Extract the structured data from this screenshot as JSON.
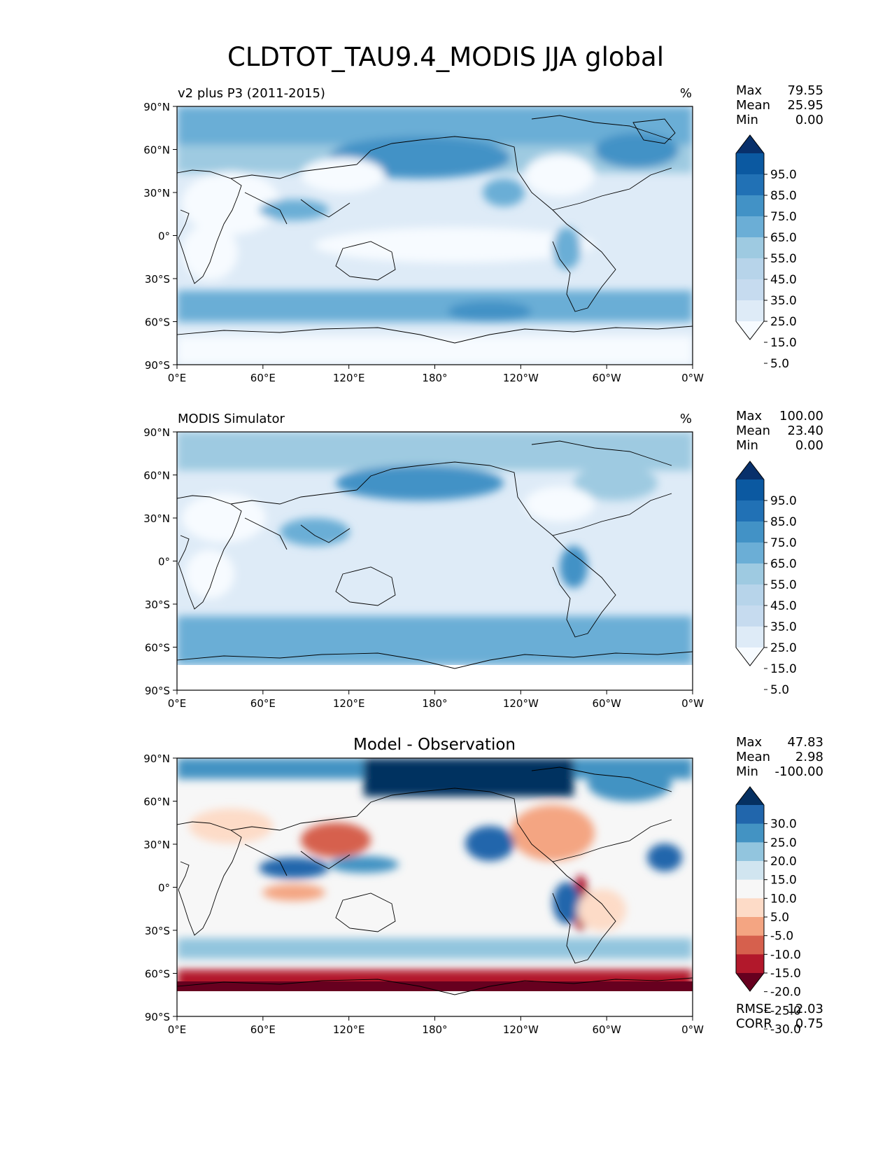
{
  "title": "CLDTOT_TAU9.4_MODIS JJA global",
  "lat_ticks": [
    "90°N",
    "60°N",
    "30°N",
    "0°",
    "30°S",
    "60°S",
    "90°S"
  ],
  "lon_ticks": [
    "0°E",
    "60°E",
    "120°E",
    "180°",
    "120°W",
    "60°W",
    "0°W"
  ],
  "colors": {
    "blues": [
      "#f7fbff",
      "#deebf7",
      "#c6dbef",
      "#b7d4ea",
      "#9ecae1",
      "#6baed6",
      "#4292c6",
      "#2171b5",
      "#0b59a1",
      "#08306b"
    ],
    "diverging": [
      "#67001f",
      "#b2182b",
      "#d6604d",
      "#f4a582",
      "#fddbc7",
      "#f7f7f7",
      "#d1e5f0",
      "#92c5de",
      "#4393c3",
      "#2166ac",
      "#053061"
    ]
  },
  "panels": [
    {
      "name": "model",
      "left_title": "v2 plus P3 (2011-2015)",
      "center_title": "",
      "units": "%",
      "stats": [
        {
          "label": "Max",
          "value": "79.55"
        },
        {
          "label": "Mean",
          "value": "25.95"
        },
        {
          "label": "Min",
          "value": "0.00"
        }
      ],
      "colorbar_ticks": [
        "95.0",
        "85.0",
        "75.0",
        "65.0",
        "55.0",
        "45.0",
        "35.0",
        "25.0",
        "15.0",
        "5.0"
      ],
      "colormap": "blues",
      "extra_stats": []
    },
    {
      "name": "obs",
      "left_title": "MODIS Simulator",
      "center_title": "",
      "units": "%",
      "stats": [
        {
          "label": "Max",
          "value": "100.00"
        },
        {
          "label": "Mean",
          "value": "23.40"
        },
        {
          "label": "Min",
          "value": "0.00"
        }
      ],
      "colorbar_ticks": [
        "95.0",
        "85.0",
        "75.0",
        "65.0",
        "55.0",
        "45.0",
        "35.0",
        "25.0",
        "15.0",
        "5.0"
      ],
      "colormap": "blues",
      "extra_stats": []
    },
    {
      "name": "diff",
      "left_title": "",
      "center_title": "Model - Observation",
      "units": "",
      "stats": [
        {
          "label": "Max",
          "value": "47.83"
        },
        {
          "label": "Mean",
          "value": "2.98"
        },
        {
          "label": "Min",
          "value": "-100.00"
        }
      ],
      "colorbar_ticks": [
        "30.0",
        "25.0",
        "20.0",
        "15.0",
        "10.0",
        "5.0",
        "-5.0",
        "-10.0",
        "-15.0",
        "-20.0",
        "-25.0",
        "-30.0"
      ],
      "colormap": "diverging",
      "extra_stats": [
        {
          "label": "RMSE",
          "value": "12.03"
        },
        {
          "label": "CORR",
          "value": "0.75"
        }
      ]
    }
  ]
}
